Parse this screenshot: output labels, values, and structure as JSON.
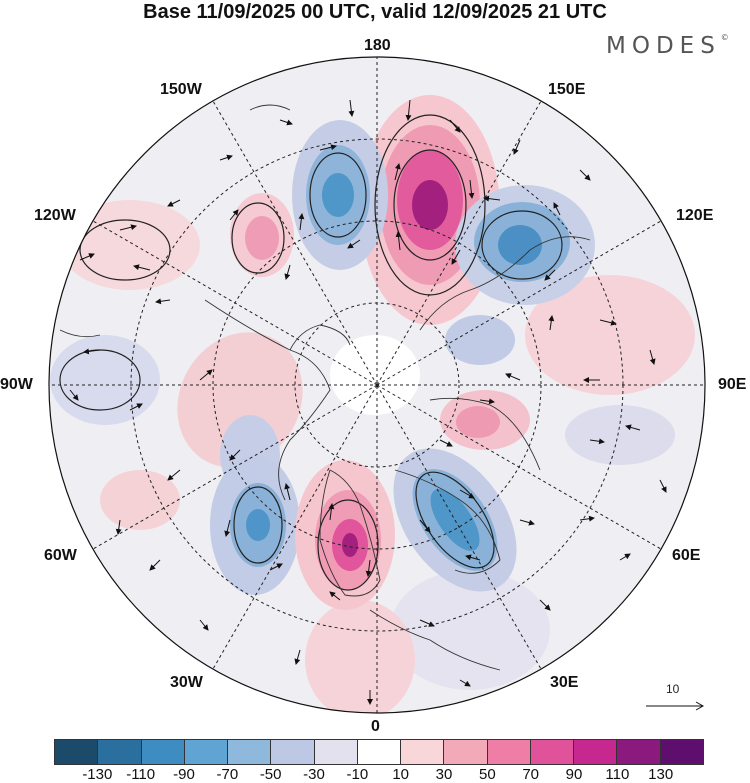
{
  "title": "Base 11/09/2025 00 UTC, valid 12/09/2025 21 UTC",
  "logo": {
    "text": "MODES",
    "mark": "©"
  },
  "longitude_labels": {
    "top": "180",
    "bottom": "0",
    "left": "90W",
    "right": "90E",
    "upper_left_inner": "150W",
    "upper_right_inner": "150E",
    "upper_left_outer": "120W",
    "upper_right_outer": "120E",
    "lower_left_outer": "60W",
    "lower_right_outer": "60E",
    "lower_left_inner": "30W",
    "lower_right_inner": "30E"
  },
  "vector_scale": {
    "value": "10"
  },
  "colorbar": {
    "colors": [
      "#1c4a6b",
      "#2b6f9e",
      "#3e8dc2",
      "#5fa4d2",
      "#8fb8dd",
      "#bcc8e4",
      "#e4e1ef",
      "#ffffff",
      "#f9d6d9",
      "#f2aab8",
      "#ee7ea6",
      "#e0529a",
      "#c62890",
      "#8b1a7e",
      "#5e0f6e"
    ],
    "tick_labels": [
      "-130",
      "-110",
      "-90",
      "-70",
      "-50",
      "-30",
      "-10",
      "10",
      "30",
      "50",
      "70",
      "90",
      "110",
      "130"
    ]
  },
  "anomaly_centers": [
    {
      "name": "high-pacific-east",
      "sign": "positive",
      "level": 5
    },
    {
      "name": "low-pacific-west",
      "sign": "negative",
      "level": 4
    },
    {
      "name": "low-east-siberia",
      "sign": "negative",
      "level": 4
    },
    {
      "name": "high-north-america",
      "sign": "positive",
      "level": 2
    },
    {
      "name": "low-alaska-coast",
      "sign": "negative",
      "level": 1
    },
    {
      "name": "low-atlantic-west",
      "sign": "negative",
      "level": 3
    },
    {
      "name": "high-greenland-sea",
      "sign": "positive",
      "level": 4
    },
    {
      "name": "low-scandinavia",
      "sign": "negative",
      "level": 4
    },
    {
      "name": "high-siberia",
      "sign": "positive",
      "level": 2
    }
  ]
}
